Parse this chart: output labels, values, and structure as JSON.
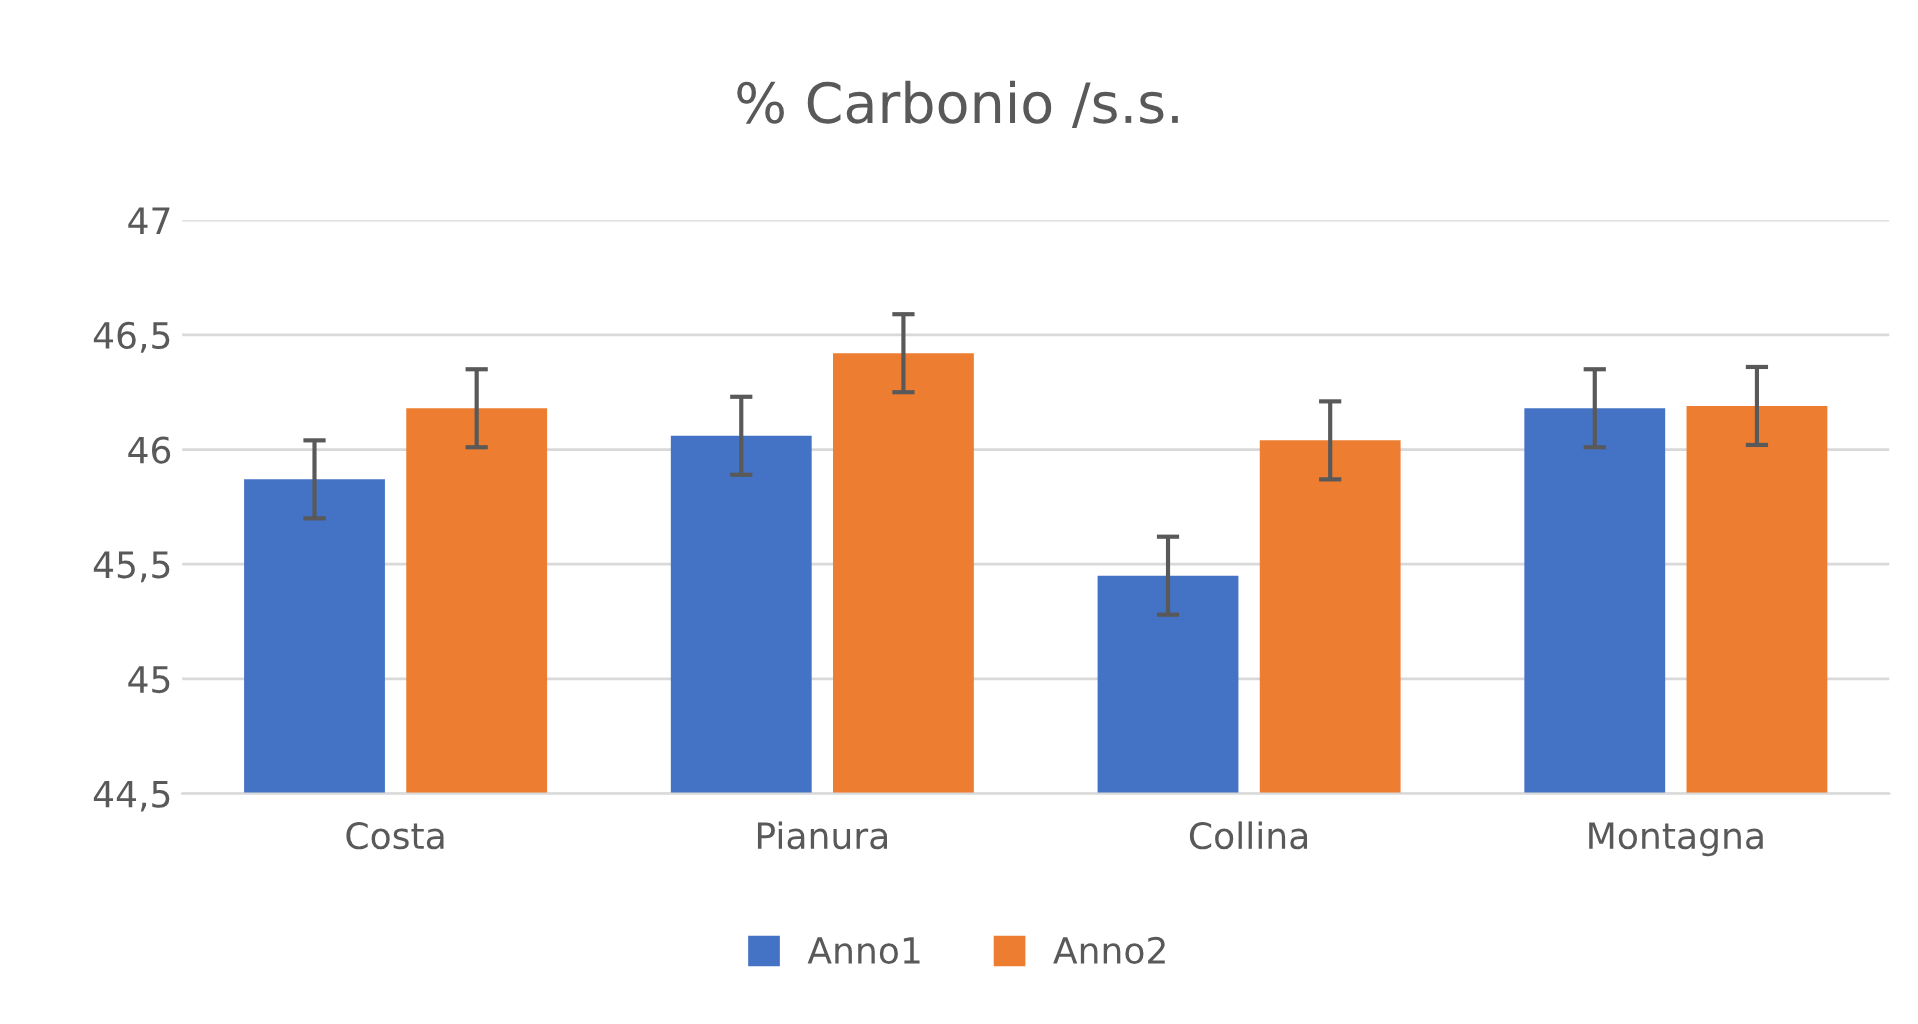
{
  "chart_data": {
    "type": "bar",
    "title": "% Carbonio /s.s.",
    "categories": [
      "Costa",
      "Pianura",
      "Collina",
      "Montagna"
    ],
    "series": [
      {
        "name": "Anno1",
        "color": "#4472c4",
        "values": [
          45.87,
          46.06,
          45.45,
          46.18
        ],
        "errors": [
          0.17,
          0.17,
          0.17,
          0.17
        ]
      },
      {
        "name": "Anno2",
        "color": "#ed7d31",
        "values": [
          46.18,
          46.42,
          46.04,
          46.19
        ],
        "errors": [
          0.17,
          0.17,
          0.17,
          0.17
        ]
      }
    ],
    "ylim": [
      44.5,
      47
    ],
    "yticks": [
      {
        "value": 44.5,
        "label": "44,5"
      },
      {
        "value": 45,
        "label": "45"
      },
      {
        "value": 45.5,
        "label": "45,5"
      },
      {
        "value": 46,
        "label": "46"
      },
      {
        "value": 46.5,
        "label": "46,5"
      },
      {
        "value": 47,
        "label": "47"
      }
    ],
    "grid": "y",
    "legend": "bottom"
  }
}
